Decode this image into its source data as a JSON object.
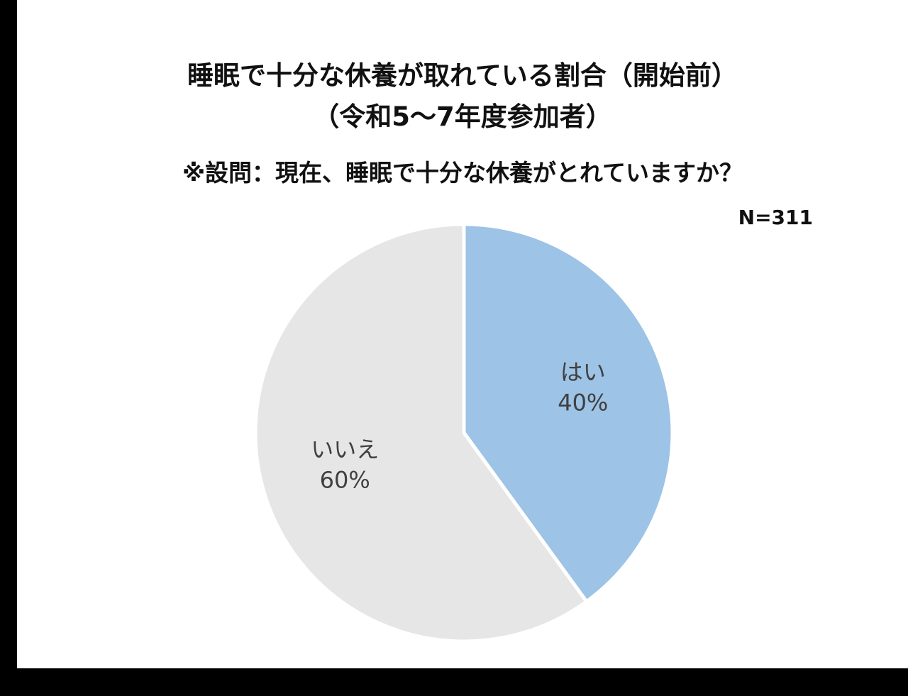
{
  "chart_data": {
    "type": "pie",
    "title": "睡眠で十分な休養が取れている割合（開始前）",
    "subtitle": "（令和5～7年度参加者）",
    "question": "※設問：現在、睡眠で十分な休養がとれていますか？",
    "n_label": "N=311",
    "slices": [
      {
        "label": "はい",
        "value": 40,
        "value_label": "40%",
        "color": "#9dc3e6"
      },
      {
        "label": "いいえ",
        "value": 60,
        "value_label": "60%",
        "color": "#e7e6e6"
      }
    ]
  }
}
